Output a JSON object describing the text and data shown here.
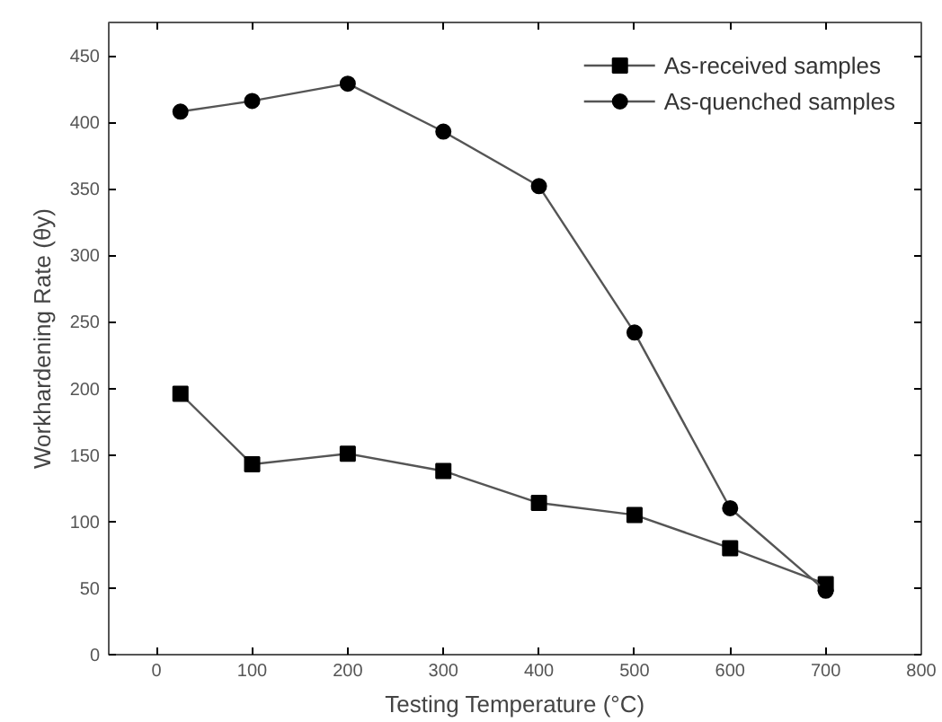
{
  "chart_data": {
    "type": "line",
    "xlabel": "Testing Temperature (°C)",
    "ylabel": "Workhardening Rate (θy)",
    "x": [
      25,
      100,
      200,
      300,
      400,
      500,
      600,
      700
    ],
    "series": [
      {
        "name": "As-received samples",
        "color": "#000000",
        "marker": "square",
        "values": [
          196,
          143,
          151,
          138,
          114,
          105,
          80,
          53
        ]
      },
      {
        "name": "As-quenched samples",
        "color": "#000000",
        "marker": "circle",
        "values": [
          408,
          416,
          429,
          393,
          352,
          242,
          110,
          48
        ]
      }
    ],
    "xlim": [
      -50,
      800
    ],
    "xticks": [
      0,
      100,
      200,
      300,
      400,
      500,
      600,
      700,
      800
    ],
    "ylim": [
      0,
      475
    ],
    "yticks": [
      0,
      50,
      100,
      150,
      200,
      250,
      300,
      350,
      400,
      450
    ],
    "grid": false,
    "legend": "top right",
    "line_style": "solid"
  }
}
